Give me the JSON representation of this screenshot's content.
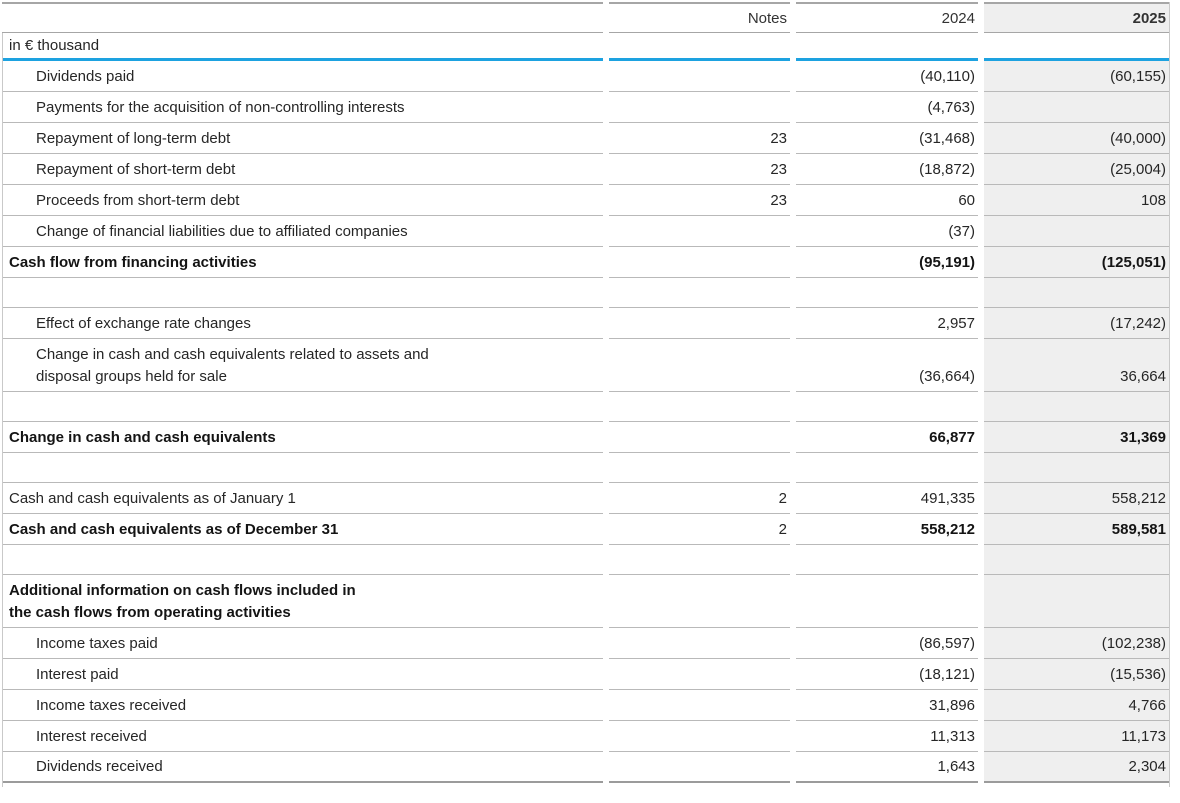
{
  "table": {
    "unit_label": "in € thousand",
    "header": {
      "notes": "Notes",
      "year_prev": "2024",
      "year_curr": "2025"
    },
    "rows": [
      {
        "type": "data",
        "indent": 1,
        "bold": false,
        "label": "Dividends paid",
        "notes": "",
        "v2024": "(40,110)",
        "v2025": "(60,155)"
      },
      {
        "type": "data",
        "indent": 1,
        "bold": false,
        "label": "Payments for the acquisition of non-controlling interests",
        "notes": "",
        "v2024": "(4,763)",
        "v2025": ""
      },
      {
        "type": "data",
        "indent": 1,
        "bold": false,
        "label": "Repayment of long-term debt",
        "notes": "23",
        "v2024": "(31,468)",
        "v2025": "(40,000)"
      },
      {
        "type": "data",
        "indent": 1,
        "bold": false,
        "label": "Repayment of short-term debt",
        "notes": "23",
        "v2024": "(18,872)",
        "v2025": "(25,004)"
      },
      {
        "type": "data",
        "indent": 1,
        "bold": false,
        "label": "Proceeds from short-term debt",
        "notes": "23",
        "v2024": "60",
        "v2025": "108"
      },
      {
        "type": "data",
        "indent": 1,
        "bold": false,
        "label": "Change of financial liabilities due to affiliated companies",
        "notes": "",
        "v2024": "(37)",
        "v2025": ""
      },
      {
        "type": "data",
        "indent": 0,
        "bold": true,
        "label": "Cash flow from financing activities",
        "notes": "",
        "v2024": "(95,191)",
        "v2025": "(125,051)"
      },
      {
        "type": "spacer"
      },
      {
        "type": "data",
        "indent": 1,
        "bold": false,
        "label": "Effect of exchange rate changes",
        "notes": "",
        "v2024": "2,957",
        "v2025": "(17,242)"
      },
      {
        "type": "data",
        "indent": 1,
        "bold": false,
        "label": "Change in cash and cash equivalents related to assets and",
        "label2": "disposal groups held for sale",
        "notes": "",
        "v2024": "(36,664)",
        "v2025": "36,664"
      },
      {
        "type": "spacer"
      },
      {
        "type": "data",
        "indent": 0,
        "bold": true,
        "label": "Change in cash and cash equivalents",
        "notes": "",
        "v2024": "66,877",
        "v2025": "31,369"
      },
      {
        "type": "spacer"
      },
      {
        "type": "data",
        "indent": 0,
        "bold": false,
        "label": "Cash and cash equivalents as of January 1",
        "notes": "2",
        "v2024": "491,335",
        "v2025": "558,212"
      },
      {
        "type": "data",
        "indent": 0,
        "bold": true,
        "label": "Cash and cash equivalents as of December 31",
        "notes": "2",
        "v2024": "558,212",
        "v2025": "589,581"
      },
      {
        "type": "spacer"
      },
      {
        "type": "data",
        "indent": 0,
        "bold": true,
        "label": "Additional information on cash flows included in",
        "label2": "the cash flows from operating activities",
        "notes": "",
        "v2024": "",
        "v2025": ""
      },
      {
        "type": "data",
        "indent": 1,
        "bold": false,
        "label": "Income taxes paid",
        "notes": "",
        "v2024": "(86,597)",
        "v2025": "(102,238)"
      },
      {
        "type": "data",
        "indent": 1,
        "bold": false,
        "label": "Interest paid",
        "notes": "",
        "v2024": "(18,121)",
        "v2025": "(15,536)"
      },
      {
        "type": "data",
        "indent": 1,
        "bold": false,
        "label": "Income taxes received",
        "notes": "",
        "v2024": "31,896",
        "v2025": "4,766"
      },
      {
        "type": "data",
        "indent": 1,
        "bold": false,
        "label": "Interest received",
        "notes": "",
        "v2024": "11,313",
        "v2025": "11,173"
      },
      {
        "type": "data",
        "indent": 1,
        "bold": false,
        "label": "Dividends received",
        "notes": "",
        "v2024": "1,643",
        "v2025": "2,304",
        "last": true
      }
    ]
  },
  "colors": {
    "accent_blue": "#1DA2E0",
    "highlight_column_bg": "#EFEFEF",
    "row_rule": "#b9b9b9",
    "header_rule": "#a6a6a6",
    "bottom_rule": "#9b9b9b",
    "text": "#262626"
  }
}
